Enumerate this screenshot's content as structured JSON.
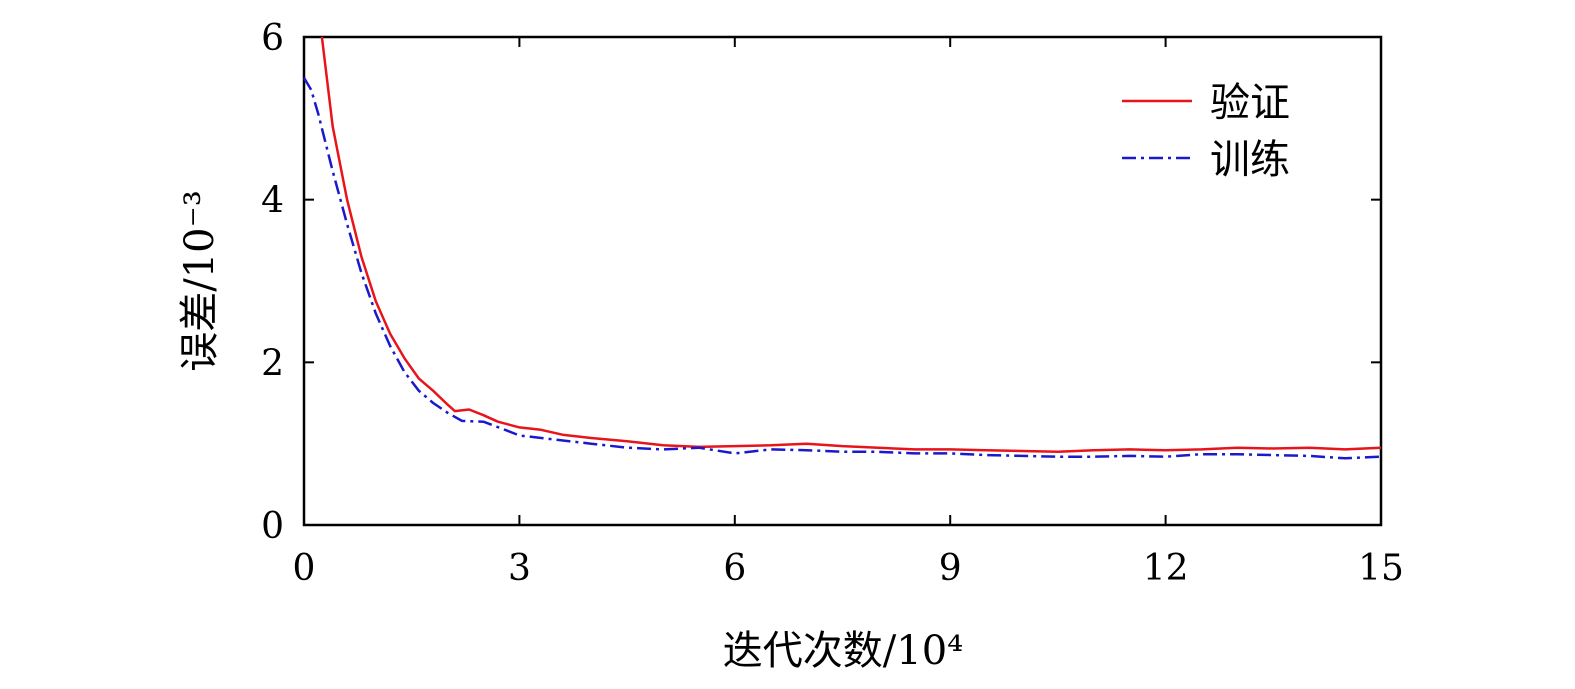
{
  "chart_data": {
    "type": "line",
    "xlabel": "迭代次数/10⁴",
    "ylabel": "误差/10⁻³",
    "xlim": [
      0,
      15
    ],
    "ylim": [
      0,
      6
    ],
    "xticks": [
      0,
      3,
      6,
      9,
      12,
      15
    ],
    "yticks": [
      0,
      2,
      4,
      6
    ],
    "x_tick_labels": [
      "0",
      "3",
      "6",
      "9",
      "12",
      "15"
    ],
    "y_tick_labels": [
      "0",
      "2",
      "4",
      "6"
    ],
    "grid": false,
    "legend_position": "top-right",
    "series": [
      {
        "name": "验证",
        "color": "#e8141c",
        "style": "solid",
        "x": [
          0.25,
          0.4,
          0.6,
          0.8,
          1.0,
          1.2,
          1.4,
          1.6,
          1.8,
          2.0,
          2.1,
          2.3,
          2.5,
          2.7,
          3.0,
          3.3,
          3.6,
          4.0,
          4.5,
          5.0,
          5.5,
          6.0,
          6.5,
          7.0,
          7.5,
          8.0,
          8.5,
          9.0,
          9.5,
          10.0,
          10.5,
          11.0,
          11.5,
          12.0,
          12.5,
          13.0,
          13.5,
          14.0,
          14.5,
          15.0
        ],
        "values": [
          6.0,
          4.9,
          4.0,
          3.3,
          2.75,
          2.35,
          2.05,
          1.8,
          1.65,
          1.48,
          1.4,
          1.42,
          1.35,
          1.27,
          1.2,
          1.17,
          1.11,
          1.07,
          1.03,
          0.98,
          0.96,
          0.97,
          0.98,
          1.0,
          0.97,
          0.95,
          0.93,
          0.93,
          0.92,
          0.91,
          0.9,
          0.92,
          0.93,
          0.92,
          0.93,
          0.95,
          0.94,
          0.95,
          0.93,
          0.95
        ]
      },
      {
        "name": "训练",
        "color": "#1a1acc",
        "style": "dashdot",
        "x": [
          0.0,
          0.1,
          0.2,
          0.3,
          0.4,
          0.6,
          0.8,
          1.0,
          1.2,
          1.4,
          1.6,
          1.8,
          2.0,
          2.2,
          2.5,
          2.8,
          3.0,
          3.5,
          4.0,
          4.5,
          5.0,
          5.5,
          6.0,
          6.5,
          7.0,
          7.5,
          8.0,
          8.5,
          9.0,
          9.5,
          10.0,
          10.5,
          11.0,
          11.5,
          12.0,
          12.5,
          13.0,
          13.5,
          14.0,
          14.5,
          15.0
        ],
        "values": [
          5.5,
          5.35,
          5.05,
          4.7,
          4.35,
          3.7,
          3.1,
          2.6,
          2.2,
          1.88,
          1.65,
          1.5,
          1.38,
          1.28,
          1.27,
          1.17,
          1.1,
          1.05,
          1.0,
          0.95,
          0.93,
          0.95,
          0.88,
          0.93,
          0.92,
          0.9,
          0.9,
          0.88,
          0.88,
          0.86,
          0.85,
          0.84,
          0.84,
          0.85,
          0.84,
          0.87,
          0.87,
          0.86,
          0.85,
          0.82,
          0.84
        ]
      }
    ]
  }
}
